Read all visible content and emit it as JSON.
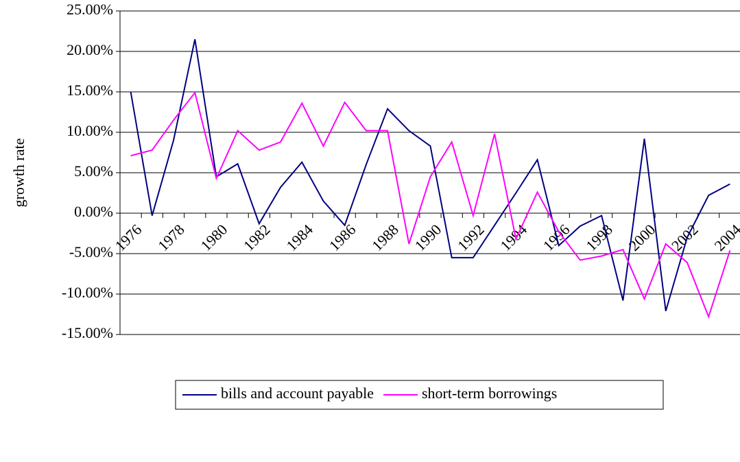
{
  "chart_data": {
    "type": "line",
    "y_label": "growth rate",
    "categories": [
      "1976",
      null,
      "1978",
      null,
      "1980",
      null,
      "1982",
      null,
      "1984",
      null,
      "1986",
      null,
      "1988",
      null,
      "1990",
      null,
      "1992",
      null,
      "1994",
      null,
      "1996",
      null,
      "1998",
      null,
      "2000",
      null,
      "2002",
      null,
      "2004"
    ],
    "series": [
      {
        "name": "bills and account payable",
        "color": "#000080",
        "values": [
          15.0,
          -0.3,
          9.0,
          21.5,
          4.5,
          6.1,
          -1.3,
          3.2,
          6.3,
          1.5,
          -1.5,
          6.0,
          12.9,
          10.2,
          8.3,
          -5.5,
          -5.5,
          -1.5,
          2.5,
          6.6,
          -4.0,
          -1.6,
          -0.3,
          -10.8,
          9.2,
          -12.1,
          -3.0,
          2.2,
          3.6
        ]
      },
      {
        "name": "short-term borrowings",
        "color": "#ff00ff",
        "values": [
          7.1,
          7.8,
          11.5,
          14.9,
          4.3,
          10.2,
          7.8,
          8.8,
          13.6,
          8.3,
          13.7,
          10.2,
          10.2,
          -3.8,
          4.5,
          8.8,
          -0.3,
          9.8,
          -3.2,
          2.6,
          -2.3,
          -5.8,
          -5.3,
          -4.5,
          -10.6,
          -3.8,
          -6.1,
          -12.8,
          -4.6
        ]
      }
    ],
    "ylim": [
      -15,
      25
    ],
    "yticks": [
      {
        "value": -15,
        "label": "-15.00%"
      },
      {
        "value": -10,
        "label": "-10.00%"
      },
      {
        "value": -5,
        "label": "-5.00%"
      },
      {
        "value": 0,
        "label": "0.00%"
      },
      {
        "value": 5,
        "label": "5.00%"
      },
      {
        "value": 10,
        "label": "10.00%"
      },
      {
        "value": 15,
        "label": "15.00%"
      },
      {
        "value": 20,
        "label": "20.00%"
      },
      {
        "value": 25,
        "label": "25.00%"
      }
    ],
    "grid": true,
    "legend": "bottom"
  }
}
